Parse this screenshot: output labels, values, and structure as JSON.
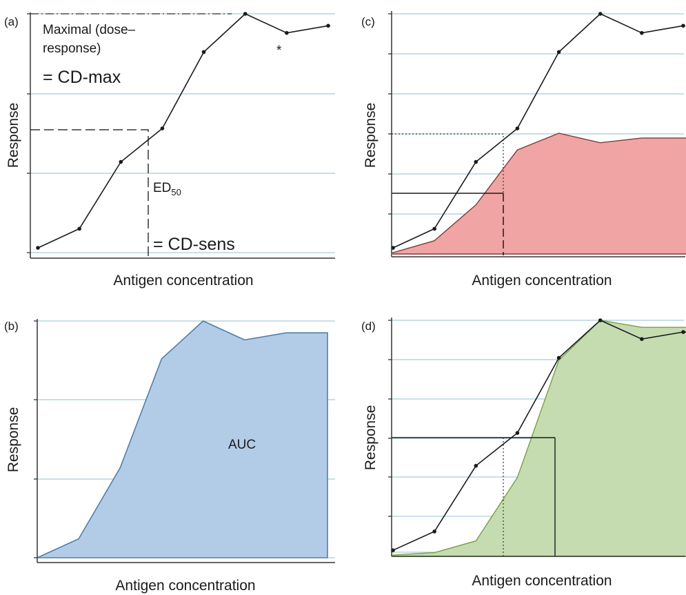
{
  "colors": {
    "grid": "#a8ccd6",
    "curve": "#1a1a1a",
    "auc_fill": "#b2cce8",
    "auc_edge": "#4f7fa8",
    "red_fill": "#f1a4a4",
    "red_edge": "#7a3b3b",
    "green_fill": "#c4dcb0",
    "green_edge": "#78a040"
  },
  "chart_data": [
    {
      "panel": "(a)",
      "type": "line",
      "xlabel": "Antigen concentration",
      "ylabel": "Response",
      "xlim": [
        0,
        7.5
      ],
      "ylim": [
        0,
        1
      ],
      "grid": true,
      "series": [
        {
          "x": [
            0,
            1,
            2,
            3,
            4,
            5,
            6,
            7
          ],
          "y": [
            0.02,
            0.1,
            0.38,
            0.52,
            0.84,
            1.0,
            0.92,
            0.95
          ]
        }
      ],
      "annotations": {
        "maximal_line1": "Maximal (dose–",
        "maximal_line2": "response)",
        "cdmax": "= CD-max",
        "ed50_main": "ED",
        "ed50_sub": "50",
        "cdsens": "= CD-sens",
        "star": "*"
      }
    },
    {
      "panel": "(b)",
      "type": "area",
      "xlabel": "Antigen concentration",
      "ylabel": "Response",
      "xlim": [
        0,
        7.5
      ],
      "ylim": [
        0,
        1
      ],
      "grid": true,
      "series": [
        {
          "x": [
            0,
            1,
            2,
            3,
            4,
            5,
            6,
            7
          ],
          "y": [
            0.0,
            0.08,
            0.38,
            0.84,
            1.0,
            0.92,
            0.95,
            0.95
          ]
        }
      ],
      "annotations": {
        "auc": "AUC"
      }
    },
    {
      "panel": "(c)",
      "type": "line",
      "xlabel": "Antigen concentration",
      "ylabel": "Response",
      "xlim": [
        0,
        7.5
      ],
      "ylim": [
        0,
        1
      ],
      "grid": true,
      "series": [
        {
          "x": [
            0,
            1,
            2,
            3,
            4,
            5,
            6,
            7
          ],
          "y": [
            0.02,
            0.1,
            0.38,
            0.52,
            0.84,
            1.0,
            0.92,
            0.95
          ]
        },
        {
          "x": [
            0,
            1,
            2,
            3,
            4,
            5,
            6,
            7,
            7.4
          ],
          "y": [
            0.0,
            0.05,
            0.2,
            0.43,
            0.5,
            0.46,
            0.48,
            0.48,
            0.48
          ],
          "fill": true
        }
      ]
    },
    {
      "panel": "(d)",
      "type": "line",
      "xlabel": "Antigen concentration",
      "ylabel": "Response",
      "xlim": [
        0,
        7.5
      ],
      "ylim": [
        0,
        1
      ],
      "grid": true,
      "series": [
        {
          "x": [
            0,
            1,
            2,
            3,
            4,
            5,
            6,
            7,
            7.4
          ],
          "y": [
            0.02,
            0.1,
            0.38,
            0.52,
            0.84,
            1.0,
            0.92,
            0.95,
            0.95
          ]
        },
        {
          "x": [
            0,
            1,
            2,
            3,
            4,
            5,
            6,
            7,
            7.4
          ],
          "y": [
            0.0,
            0.01,
            0.06,
            0.33,
            0.83,
            1.0,
            0.97,
            0.97,
            0.97
          ],
          "fill": true
        }
      ]
    }
  ]
}
